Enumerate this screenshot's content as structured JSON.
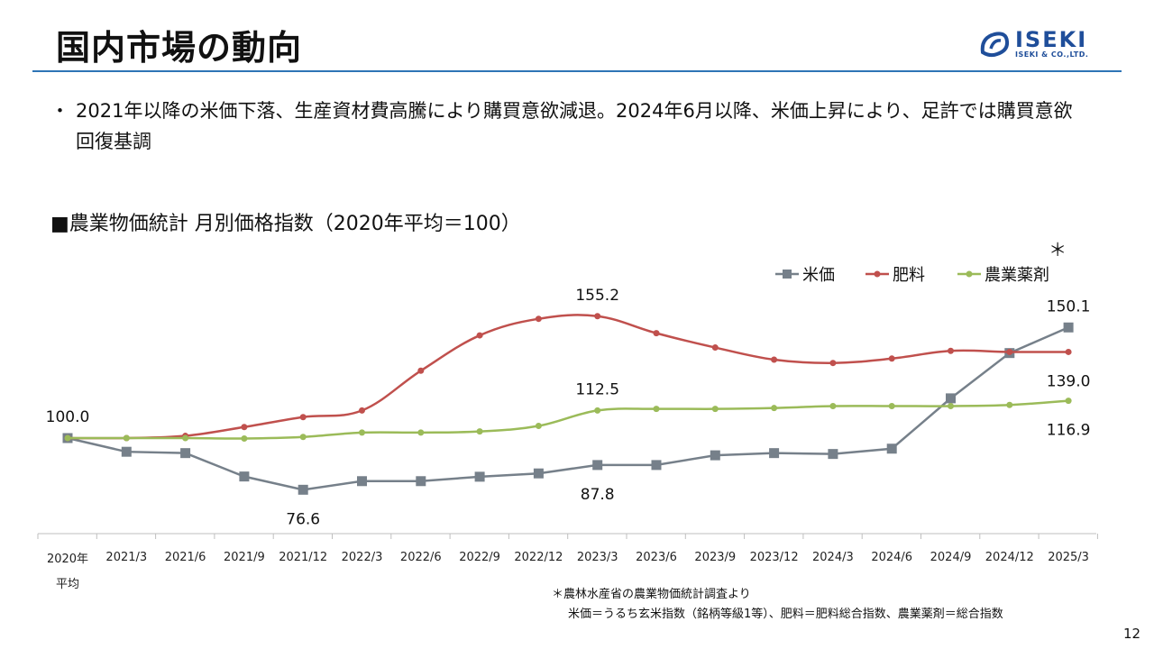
{
  "page": {
    "title": "国内市場の動向",
    "bullet": "・",
    "bullet_text": "2021年以降の米価下落、生産資材費高騰により購買意欲減退。2024年6月以降、米価上昇により、足許では購買意欲回復基調",
    "subtitle": "■農業物価統計 月別価格指数（2020年平均＝100）",
    "note1": "＊農林水産省の農業物価統計調査より",
    "note2": "米価＝うるち玄米指数（銘柄等級1等）、肥料＝肥料総合指数、農業薬剤＝総合指数",
    "page_number": "12"
  },
  "logo": {
    "text": "ISEKI",
    "sub": "ISEKI & CO.,LTD.",
    "color": "#1f4e9a"
  },
  "chart_data": {
    "type": "line",
    "title": "",
    "categories": [
      "2020年平均",
      "2021/3",
      "2021/6",
      "2021/9",
      "2021/12",
      "2022/3",
      "2022/6",
      "2022/9",
      "2022/12",
      "2023/3",
      "2023/6",
      "2023/9",
      "2023/12",
      "2024/3",
      "2024/6",
      "2024/9",
      "2024/12",
      "2025/3"
    ],
    "series": [
      {
        "name": "米価",
        "color": "#76808a",
        "marker": "square",
        "values": [
          100.0,
          93.8,
          93.2,
          82.6,
          76.6,
          80.5,
          80.5,
          82.5,
          84.0,
          87.8,
          87.8,
          92.2,
          93.2,
          92.8,
          95.2,
          118.0,
          138.5,
          150.1
        ]
      },
      {
        "name": "肥料",
        "color": "#c0504d",
        "marker": "circle",
        "values": [
          100.0,
          100.0,
          101.0,
          105.0,
          109.5,
          112.5,
          130.5,
          146.5,
          154.0,
          155.2,
          147.5,
          141.0,
          135.5,
          134.0,
          136.0,
          139.5,
          139.0,
          139.0
        ]
      },
      {
        "name": "農業薬剤",
        "color": "#9bbb59",
        "marker": "circle",
        "values": [
          100.0,
          100.0,
          100.0,
          99.8,
          100.5,
          102.5,
          102.5,
          103.0,
          105.5,
          112.5,
          113.2,
          113.2,
          113.6,
          114.5,
          114.5,
          114.5,
          115.0,
          116.9
        ]
      }
    ],
    "data_labels": [
      {
        "text": "100.0",
        "series": 0,
        "index": 0,
        "pos": "above"
      },
      {
        "text": "76.6",
        "series": 0,
        "index": 4,
        "pos": "below"
      },
      {
        "text": "87.8",
        "series": 0,
        "index": 9,
        "pos": "below"
      },
      {
        "text": "155.2",
        "series": 1,
        "index": 9,
        "pos": "above"
      },
      {
        "text": "112.5",
        "series": 2,
        "index": 9,
        "pos": "above"
      },
      {
        "text": "150.1",
        "series": 0,
        "index": 17,
        "pos": "above"
      },
      {
        "text": "139.0",
        "series": 1,
        "index": 17,
        "pos": "below"
      },
      {
        "text": "116.9",
        "series": 2,
        "index": 17,
        "pos": "below"
      }
    ],
    "asterisk": "＊",
    "legend_position": "top-right",
    "grid": false
  }
}
